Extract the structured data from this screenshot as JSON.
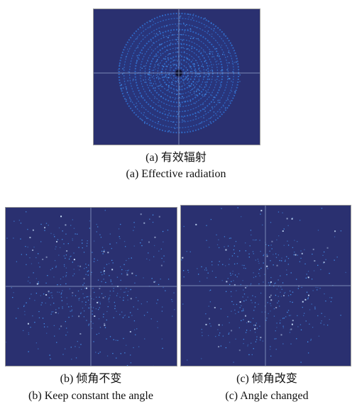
{
  "figure": {
    "panel_a": {
      "caption_cn": "(a) 有效辐射",
      "caption_en": "(a) Effective radiation"
    },
    "panel_b": {
      "caption_cn": "(b) 倾角不变",
      "caption_en": "(b) Keep constant the angle"
    },
    "panel_c": {
      "caption_cn": "(c) 倾角改变",
      "caption_en": "(c) Angle changed"
    }
  },
  "colors": {
    "background": "#2a3070",
    "crosshair": "#8fa0c8",
    "ring": "#2f6fd0",
    "speckle": "#4aa0ff"
  }
}
